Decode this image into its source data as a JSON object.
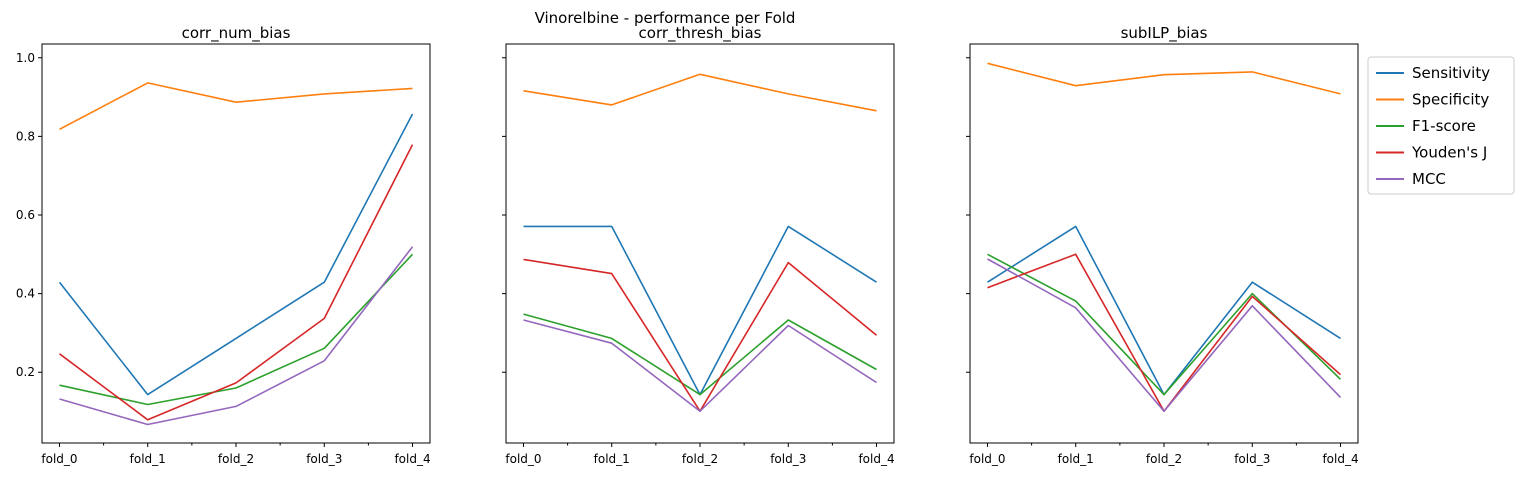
{
  "figure": {
    "suptitle": "Vinorelbine - performance per Fold"
  },
  "colors": {
    "Sensitivity": "#1f77b4",
    "Specificity": "#ff7f0e",
    "F1-score": "#2ca02c",
    "Youden's J": "#d62728",
    "MCC": "#9467bd"
  },
  "legend": {
    "placement": "outside-right-top",
    "entries": [
      "Sensitivity",
      "Specificity",
      "F1-score",
      "Youden's J",
      "MCC"
    ]
  },
  "chart_data": [
    {
      "type": "line",
      "title": "corr_num_bias",
      "categories": [
        "fold_0",
        "fold_1",
        "fold_2",
        "fold_3",
        "fold_4"
      ],
      "ylim": [
        0.02,
        1.035
      ],
      "yticks": [
        "0.2",
        "0.4",
        "0.6",
        "0.8",
        "1.0"
      ],
      "sharey": true,
      "series": [
        {
          "name": "Sensitivity",
          "values": [
            0.429,
            0.143,
            0.286,
            0.429,
            0.857
          ]
        },
        {
          "name": "Specificity",
          "values": [
            0.818,
            0.936,
            0.887,
            0.908,
            0.922
          ]
        },
        {
          "name": "F1-score",
          "values": [
            0.167,
            0.118,
            0.16,
            0.261,
            0.5
          ]
        },
        {
          "name": "Youden's J",
          "values": [
            0.247,
            0.079,
            0.173,
            0.337,
            0.779
          ]
        },
        {
          "name": "MCC",
          "values": [
            0.132,
            0.067,
            0.113,
            0.229,
            0.519
          ]
        }
      ]
    },
    {
      "type": "line",
      "title": "corr_thresh_bias",
      "categories": [
        "fold_0",
        "fold_1",
        "fold_2",
        "fold_3",
        "fold_4"
      ],
      "ylim": [
        0.02,
        1.035
      ],
      "sharey": true,
      "series": [
        {
          "name": "Sensitivity",
          "values": [
            0.571,
            0.571,
            0.143,
            0.571,
            0.429
          ]
        },
        {
          "name": "Specificity",
          "values": [
            0.916,
            0.88,
            0.958,
            0.908,
            0.865
          ]
        },
        {
          "name": "F1-score",
          "values": [
            0.348,
            0.286,
            0.143,
            0.333,
            0.207
          ]
        },
        {
          "name": "Youden's J",
          "values": [
            0.487,
            0.451,
            0.101,
            0.479,
            0.294
          ]
        },
        {
          "name": "MCC",
          "values": [
            0.333,
            0.274,
            0.101,
            0.319,
            0.174
          ]
        }
      ]
    },
    {
      "type": "line",
      "title": "subILP_bias",
      "categories": [
        "fold_0",
        "fold_1",
        "fold_2",
        "fold_3",
        "fold_4"
      ],
      "ylim": [
        0.02,
        1.035
      ],
      "sharey": true,
      "series": [
        {
          "name": "Sensitivity",
          "values": [
            0.429,
            0.571,
            0.143,
            0.429,
            0.286
          ]
        },
        {
          "name": "Specificity",
          "values": [
            0.986,
            0.929,
            0.957,
            0.964,
            0.908
          ]
        },
        {
          "name": "F1-score",
          "values": [
            0.5,
            0.381,
            0.143,
            0.4,
            0.182
          ]
        },
        {
          "name": "Youden's J",
          "values": [
            0.415,
            0.5,
            0.101,
            0.393,
            0.194
          ]
        },
        {
          "name": "MCC",
          "values": [
            0.488,
            0.364,
            0.101,
            0.369,
            0.136
          ]
        }
      ]
    }
  ]
}
